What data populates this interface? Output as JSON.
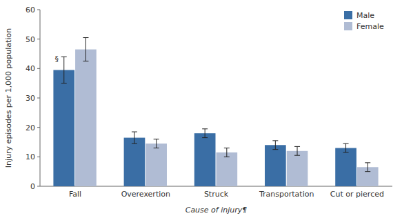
{
  "chart_data": {
    "type": "bar",
    "categories": [
      "Fall",
      "Overexertion",
      "Struck",
      "Transportation",
      "Cut or pierced"
    ],
    "series": [
      {
        "name": "Male",
        "color": "#3a6ea5",
        "values": [
          39.5,
          16.5,
          18.0,
          14.0,
          13.0
        ],
        "errors": [
          4.5,
          2.0,
          1.5,
          1.5,
          1.5
        ]
      },
      {
        "name": "Female",
        "color": "#b0bcd4",
        "values": [
          46.5,
          14.5,
          11.5,
          12.0,
          6.5
        ],
        "errors": [
          4.0,
          1.5,
          1.5,
          1.5,
          1.5
        ]
      }
    ],
    "xlabel": "Cause of injury¶",
    "ylabel": "Injury episodes per 1,000 population",
    "ylim": [
      0,
      60
    ],
    "yticks": [
      0,
      10,
      20,
      30,
      40,
      50,
      60
    ],
    "legend": "upper right",
    "grid": false,
    "annotations": [
      {
        "text": "§",
        "x": "Fall",
        "series": "Male",
        "y": 42
      }
    ]
  }
}
